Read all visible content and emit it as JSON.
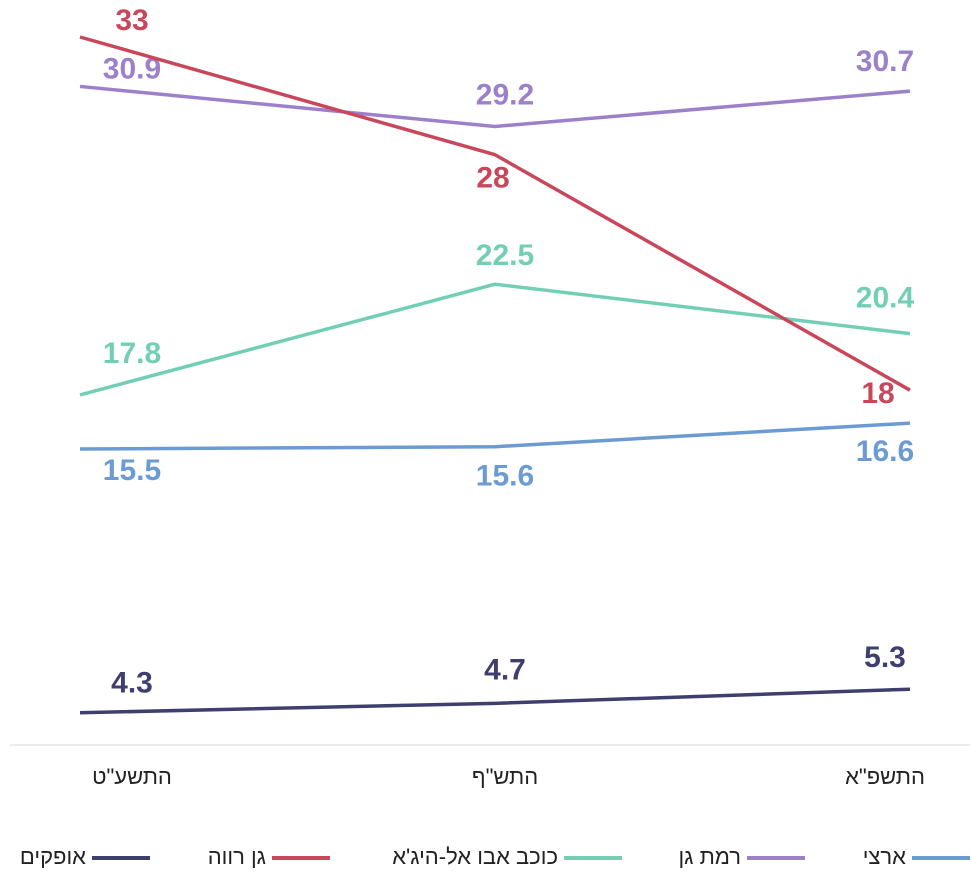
{
  "chart_data": {
    "type": "line",
    "categories": [
      "התשע\"ט",
      "התש\"ף",
      "התשפ\"א"
    ],
    "ylim": [
      0,
      33
    ],
    "series": [
      {
        "name": "ארצי",
        "color": "#6b9bd2",
        "values": [
          15.5,
          15.6,
          16.6
        ]
      },
      {
        "name": "רמת גן",
        "color": "#9d80ca",
        "values": [
          30.9,
          29.2,
          30.7
        ]
      },
      {
        "name": "כוכב אבו אל-היג'א",
        "color": "#72cfb6",
        "values": [
          17.8,
          22.5,
          20.4
        ]
      },
      {
        "name": "גן רווה",
        "color": "#c9475b",
        "values": [
          33,
          28,
          18
        ]
      },
      {
        "name": "אופקים",
        "color": "#3f3f6f",
        "values": [
          4.3,
          4.7,
          5.3
        ]
      }
    ]
  }
}
